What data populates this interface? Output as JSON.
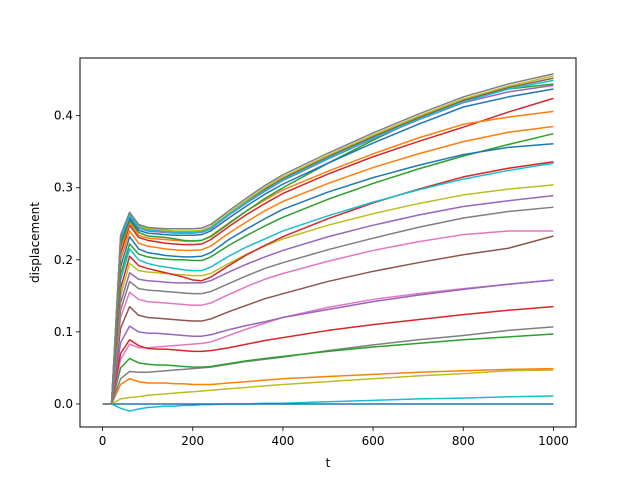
{
  "chart_data": {
    "type": "line",
    "title": "",
    "xlabel": "t",
    "ylabel": "displacement",
    "xlim": [
      -50,
      1050
    ],
    "ylim": [
      -0.032,
      0.48
    ],
    "xticks": [
      0,
      200,
      400,
      600,
      800,
      1000
    ],
    "xtick_labels": [
      "0",
      "200",
      "400",
      "600",
      "800",
      "1000"
    ],
    "yticks": [
      0.0,
      0.1,
      0.2,
      0.3,
      0.4
    ],
    "ytick_labels": [
      "0.0",
      "0.1",
      "0.2",
      "0.3",
      "0.4"
    ],
    "grid": false,
    "legend": "none",
    "x": [
      0,
      20,
      40,
      60,
      80,
      100,
      120,
      140,
      160,
      180,
      200,
      220,
      240,
      280,
      320,
      360,
      400,
      500,
      600,
      700,
      800,
      900,
      1000
    ],
    "series": [
      {
        "color": "#17becf",
        "values": [
          0,
          0,
          -0.006,
          -0.01,
          -0.007,
          -0.005,
          -0.004,
          -0.003,
          -0.003,
          -0.002,
          -0.002,
          -0.001,
          -0.001,
          0,
          0,
          0.001,
          0.001,
          0.003,
          0.005,
          0.007,
          0.008,
          0.01,
          0.011
        ]
      },
      {
        "color": "#1f77b4",
        "values": [
          0,
          0,
          0,
          0,
          0,
          0,
          0,
          0,
          0,
          0,
          0,
          0,
          0,
          0,
          0,
          0,
          0,
          0,
          0,
          0,
          0,
          0,
          0
        ]
      },
      {
        "color": "#bcbd22",
        "values": [
          0,
          0,
          0.007,
          0.009,
          0.01,
          0.012,
          0.013,
          0.014,
          0.015,
          0.016,
          0.017,
          0.018,
          0.019,
          0.021,
          0.023,
          0.025,
          0.027,
          0.031,
          0.035,
          0.039,
          0.042,
          0.046,
          0.047
        ]
      },
      {
        "color": "#ff7f0e",
        "values": [
          0,
          0,
          0.027,
          0.035,
          0.031,
          0.029,
          0.029,
          0.029,
          0.028,
          0.028,
          0.027,
          0.027,
          0.027,
          0.029,
          0.031,
          0.033,
          0.035,
          0.038,
          0.041,
          0.044,
          0.046,
          0.048,
          0.049
        ]
      },
      {
        "color": "#7f7f7f",
        "values": [
          0,
          0,
          0.035,
          0.045,
          0.044,
          0.044,
          0.045,
          0.046,
          0.047,
          0.048,
          0.049,
          0.05,
          0.051,
          0.055,
          0.059,
          0.062,
          0.065,
          0.074,
          0.082,
          0.089,
          0.095,
          0.102,
          0.107
        ]
      },
      {
        "color": "#2ca02c",
        "values": [
          0,
          0,
          0.05,
          0.063,
          0.057,
          0.055,
          0.054,
          0.054,
          0.053,
          0.052,
          0.051,
          0.051,
          0.052,
          0.056,
          0.06,
          0.063,
          0.066,
          0.073,
          0.079,
          0.084,
          0.089,
          0.093,
          0.097
        ]
      },
      {
        "color": "#e377c2",
        "values": [
          0,
          0,
          0.062,
          0.083,
          0.078,
          0.078,
          0.079,
          0.08,
          0.081,
          0.082,
          0.083,
          0.084,
          0.086,
          0.095,
          0.104,
          0.112,
          0.12,
          0.134,
          0.145,
          0.153,
          0.16,
          0.166,
          0.172
        ]
      },
      {
        "color": "#d62728",
        "values": [
          0,
          0,
          0.07,
          0.089,
          0.081,
          0.077,
          0.076,
          0.076,
          0.075,
          0.074,
          0.073,
          0.073,
          0.074,
          0.078,
          0.083,
          0.088,
          0.092,
          0.102,
          0.11,
          0.117,
          0.124,
          0.13,
          0.135
        ]
      },
      {
        "color": "#9467bd",
        "values": [
          0,
          0,
          0.085,
          0.108,
          0.1,
          0.098,
          0.098,
          0.097,
          0.096,
          0.095,
          0.094,
          0.094,
          0.096,
          0.103,
          0.109,
          0.114,
          0.12,
          0.131,
          0.142,
          0.151,
          0.159,
          0.166,
          0.172
        ]
      },
      {
        "color": "#8c564b",
        "values": [
          0,
          0,
          0.105,
          0.135,
          0.123,
          0.12,
          0.119,
          0.118,
          0.117,
          0.116,
          0.115,
          0.115,
          0.118,
          0.128,
          0.137,
          0.146,
          0.153,
          0.17,
          0.184,
          0.196,
          0.207,
          0.216,
          0.233
        ]
      },
      {
        "color": "#e377c2",
        "values": [
          0,
          0,
          0.12,
          0.155,
          0.145,
          0.142,
          0.141,
          0.14,
          0.139,
          0.138,
          0.137,
          0.137,
          0.14,
          0.152,
          0.163,
          0.173,
          0.181,
          0.198,
          0.213,
          0.225,
          0.235,
          0.24,
          0.24
        ]
      },
      {
        "color": "#7f7f7f",
        "values": [
          0,
          0,
          0.13,
          0.17,
          0.16,
          0.158,
          0.157,
          0.156,
          0.155,
          0.154,
          0.153,
          0.153,
          0.156,
          0.167,
          0.178,
          0.188,
          0.196,
          0.214,
          0.23,
          0.245,
          0.258,
          0.267,
          0.273
        ]
      },
      {
        "color": "#9467bd",
        "values": [
          0,
          0,
          0.14,
          0.182,
          0.173,
          0.171,
          0.17,
          0.169,
          0.168,
          0.168,
          0.168,
          0.168,
          0.171,
          0.183,
          0.194,
          0.204,
          0.213,
          0.232,
          0.248,
          0.262,
          0.274,
          0.282,
          0.289
        ]
      },
      {
        "color": "#bcbd22",
        "values": [
          0,
          0,
          0.15,
          0.195,
          0.185,
          0.183,
          0.182,
          0.181,
          0.18,
          0.179,
          0.178,
          0.178,
          0.181,
          0.195,
          0.208,
          0.219,
          0.229,
          0.248,
          0.264,
          0.278,
          0.29,
          0.298,
          0.304
        ]
      },
      {
        "color": "#d62728",
        "values": [
          0,
          0,
          0.16,
          0.205,
          0.192,
          0.188,
          0.185,
          0.182,
          0.179,
          0.176,
          0.172,
          0.171,
          0.176,
          0.192,
          0.207,
          0.22,
          0.232,
          0.257,
          0.279,
          0.298,
          0.315,
          0.327,
          0.336
        ]
      },
      {
        "color": "#17becf",
        "values": [
          0,
          0,
          0.172,
          0.215,
          0.2,
          0.195,
          0.192,
          0.19,
          0.188,
          0.186,
          0.185,
          0.185,
          0.19,
          0.205,
          0.218,
          0.229,
          0.24,
          0.261,
          0.28,
          0.297,
          0.312,
          0.324,
          0.334
        ]
      },
      {
        "color": "#2ca02c",
        "values": [
          0,
          0,
          0.18,
          0.222,
          0.208,
          0.204,
          0.202,
          0.201,
          0.2,
          0.2,
          0.199,
          0.199,
          0.204,
          0.22,
          0.234,
          0.247,
          0.259,
          0.284,
          0.306,
          0.326,
          0.344,
          0.36,
          0.375
        ]
      },
      {
        "color": "#1f77b4",
        "values": [
          0,
          0,
          0.19,
          0.232,
          0.215,
          0.21,
          0.208,
          0.206,
          0.205,
          0.204,
          0.204,
          0.205,
          0.21,
          0.228,
          0.243,
          0.257,
          0.27,
          0.294,
          0.314,
          0.331,
          0.346,
          0.356,
          0.361
        ]
      },
      {
        "color": "#ff7f0e",
        "values": [
          0,
          0,
          0.2,
          0.24,
          0.223,
          0.219,
          0.217,
          0.215,
          0.214,
          0.213,
          0.213,
          0.214,
          0.219,
          0.237,
          0.253,
          0.268,
          0.281,
          0.306,
          0.328,
          0.347,
          0.364,
          0.377,
          0.385
        ]
      },
      {
        "color": "#d62728",
        "values": [
          0,
          0,
          0.208,
          0.248,
          0.231,
          0.227,
          0.225,
          0.223,
          0.222,
          0.221,
          0.221,
          0.222,
          0.228,
          0.246,
          0.263,
          0.278,
          0.292,
          0.319,
          0.343,
          0.364,
          0.384,
          0.405,
          0.424
        ]
      },
      {
        "color": "#ff7f0e",
        "values": [
          0,
          0,
          0.215,
          0.252,
          0.234,
          0.23,
          0.229,
          0.228,
          0.227,
          0.226,
          0.226,
          0.227,
          0.233,
          0.251,
          0.268,
          0.283,
          0.297,
          0.323,
          0.347,
          0.369,
          0.388,
          0.398,
          0.406
        ]
      },
      {
        "color": "#2ca02c",
        "values": [
          0,
          0,
          0.22,
          0.255,
          0.238,
          0.233,
          0.232,
          0.231,
          0.229,
          0.227,
          0.226,
          0.227,
          0.232,
          0.25,
          0.268,
          0.285,
          0.3,
          0.334,
          0.366,
          0.396,
          0.423,
          0.437,
          0.444
        ]
      },
      {
        "color": "#1f77b4",
        "values": [
          0,
          0,
          0.225,
          0.258,
          0.241,
          0.237,
          0.236,
          0.235,
          0.234,
          0.234,
          0.234,
          0.235,
          0.24,
          0.258,
          0.275,
          0.291,
          0.305,
          0.334,
          0.362,
          0.388,
          0.412,
          0.426,
          0.437
        ]
      },
      {
        "color": "#9467bd",
        "values": [
          0,
          0,
          0.228,
          0.261,
          0.244,
          0.24,
          0.239,
          0.238,
          0.237,
          0.237,
          0.237,
          0.238,
          0.243,
          0.262,
          0.279,
          0.295,
          0.31,
          0.34,
          0.368,
          0.394,
          0.418,
          0.433,
          0.442
        ]
      },
      {
        "color": "#8c564b",
        "values": [
          0,
          0,
          0.23,
          0.263,
          0.246,
          0.242,
          0.241,
          0.24,
          0.239,
          0.239,
          0.239,
          0.24,
          0.245,
          0.264,
          0.282,
          0.298,
          0.313,
          0.343,
          0.371,
          0.397,
          0.421,
          0.439,
          0.452
        ]
      },
      {
        "color": "#bcbd22",
        "values": [
          0,
          0,
          0.232,
          0.264,
          0.247,
          0.243,
          0.242,
          0.241,
          0.24,
          0.24,
          0.24,
          0.241,
          0.246,
          0.265,
          0.283,
          0.3,
          0.315,
          0.345,
          0.373,
          0.399,
          0.423,
          0.441,
          0.455
        ]
      },
      {
        "color": "#17becf",
        "values": [
          0,
          0,
          0.229,
          0.262,
          0.245,
          0.241,
          0.24,
          0.239,
          0.238,
          0.238,
          0.238,
          0.239,
          0.244,
          0.263,
          0.28,
          0.296,
          0.311,
          0.341,
          0.369,
          0.395,
          0.419,
          0.437,
          0.449
        ]
      },
      {
        "color": "#7f7f7f",
        "values": [
          0,
          0,
          0.234,
          0.266,
          0.249,
          0.245,
          0.244,
          0.243,
          0.243,
          0.243,
          0.243,
          0.244,
          0.249,
          0.268,
          0.286,
          0.303,
          0.318,
          0.348,
          0.376,
          0.402,
          0.426,
          0.444,
          0.458
        ]
      }
    ]
  }
}
